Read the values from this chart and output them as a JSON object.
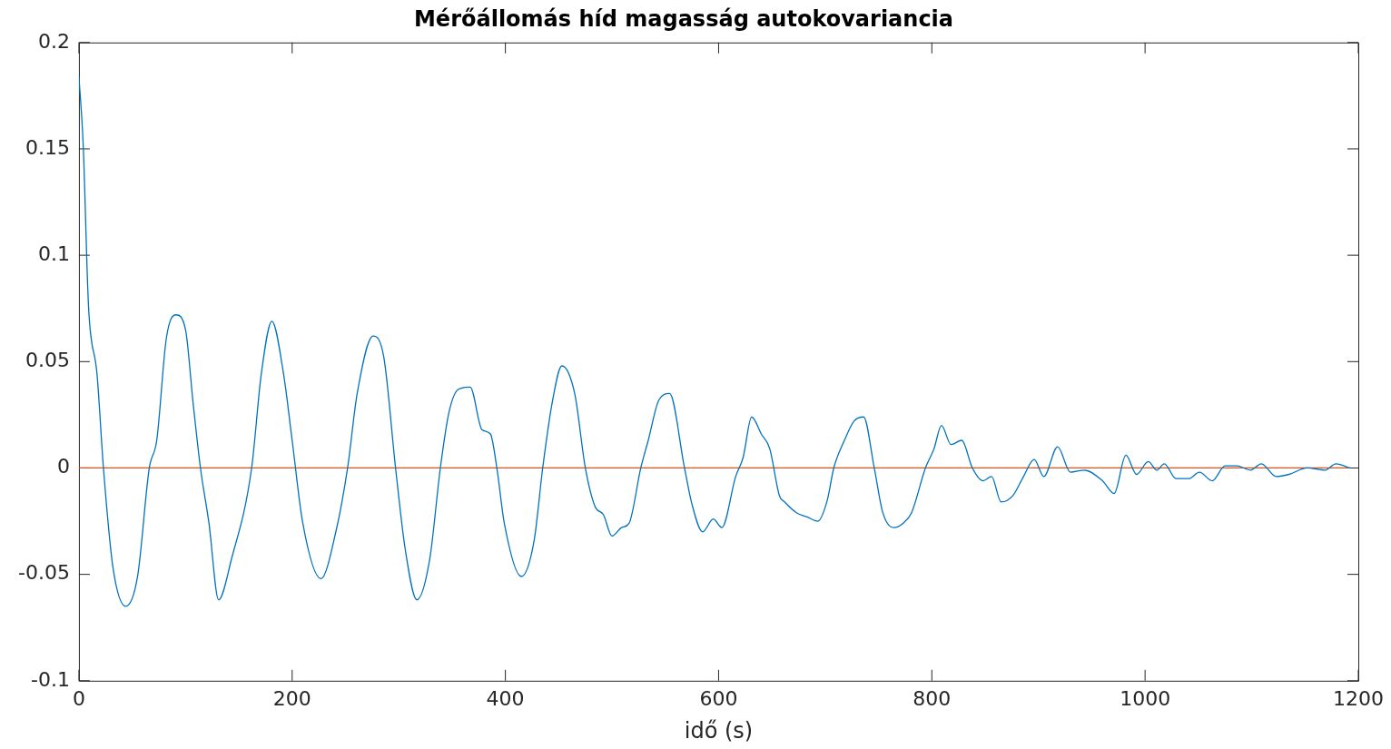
{
  "chart_data": {
    "type": "line",
    "title": "Mérőállomás híd magasság autokovariancia",
    "xlabel": "idő (s)",
    "xlim": [
      0,
      1200
    ],
    "xticks": [
      0,
      200,
      400,
      600,
      800,
      1000,
      1200
    ],
    "ylim": [
      -0.1,
      0.2
    ],
    "yticks": [
      -0.1,
      -0.05,
      0,
      0.05,
      0.1,
      0.15,
      0.2
    ],
    "grid": false,
    "legend": false,
    "marker": "none",
    "line_style": "solid",
    "series": [
      {
        "color": "#0072bd",
        "x": [
          0,
          4,
          9,
          17,
          23,
          32,
          44,
          55,
          66,
          73,
          82,
          91,
          100,
          107,
          114,
          122,
          131,
          143,
          162,
          171,
          181,
          192,
          200,
          210,
          227,
          241,
          252,
          261,
          276,
          286,
          297,
          306,
          317,
          329,
          339,
          347,
          356,
          367,
          378,
          386,
          392,
          399,
          415,
          427,
          435,
          444,
          453,
          465,
          475,
          484,
          492,
          500,
          509,
          516,
          527,
          534,
          544,
          554,
          568,
          575,
          585,
          595,
          603,
          616,
          623,
          631,
          640,
          648,
          657,
          662,
          673,
          683,
          693,
          702,
          708,
          718,
          727,
          736,
          746,
          754,
          764,
          773,
          781,
          794,
          802,
          809,
          818,
          828,
          838,
          848,
          856,
          865,
          876,
          886,
          896,
          905,
          918,
          930,
          943,
          960,
          971,
          982,
          992,
          1003,
          1011,
          1018,
          1029,
          1041,
          1051,
          1063,
          1075,
          1086,
          1099,
          1109,
          1123,
          1135,
          1152,
          1169,
          1179,
          1192
        ],
        "values": [
          0.184,
          0.152,
          0.076,
          0.044,
          0,
          -0.047,
          -0.065,
          -0.051,
          0,
          0.013,
          0.061,
          0.072,
          0.065,
          0.031,
          0,
          -0.026,
          -0.062,
          -0.043,
          0,
          0.044,
          0.069,
          0.044,
          0.013,
          -0.026,
          -0.052,
          -0.03,
          0,
          0.035,
          0.062,
          0.052,
          0,
          -0.038,
          -0.062,
          -0.043,
          0,
          0.026,
          0.037,
          0.038,
          0.018,
          0.016,
          0,
          -0.026,
          -0.051,
          -0.034,
          0,
          0.031,
          0.048,
          0.035,
          0,
          -0.018,
          -0.022,
          -0.032,
          -0.028,
          -0.026,
          0,
          0.013,
          0.032,
          0.035,
          0,
          -0.017,
          -0.03,
          -0.024,
          -0.028,
          -0.004,
          0.005,
          0.024,
          0.016,
          0.009,
          -0.013,
          -0.016,
          -0.021,
          -0.023,
          -0.025,
          -0.015,
          0,
          0.013,
          0.022,
          0.024,
          0,
          -0.021,
          -0.028,
          -0.026,
          -0.021,
          0,
          0.009,
          0.02,
          0.011,
          0.013,
          0,
          -0.006,
          -0.004,
          -0.016,
          -0.013,
          -0.004,
          0.004,
          -0.004,
          0.01,
          -0.002,
          -0.001,
          -0.006,
          -0.012,
          0.006,
          -0.003,
          0.003,
          -0.001,
          0.002,
          -0.005,
          -0.005,
          -0.002,
          -0.006,
          0.001,
          0.001,
          -0.001,
          0.002,
          -0.004,
          -0.003,
          0,
          -0.001,
          0.002,
          0
        ]
      },
      {
        "color": "#d95319",
        "x": [
          0,
          1192
        ],
        "values": [
          0,
          0
        ]
      }
    ]
  }
}
